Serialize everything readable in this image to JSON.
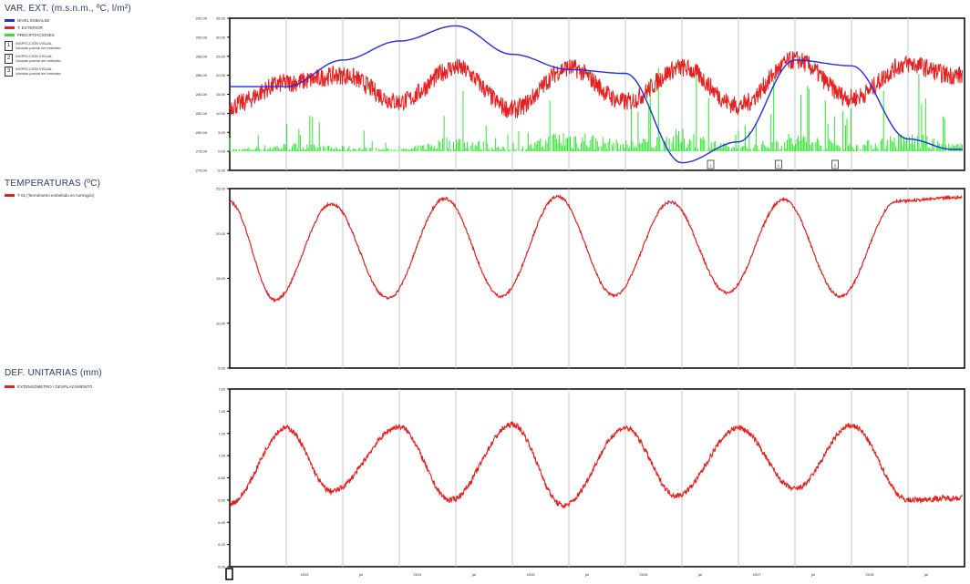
{
  "panels": {
    "external": {
      "title": "VAR. EXT. (m.s.n.m., ºC, l/m²)",
      "legend": [
        {
          "label": "NIVEL EMBALSE",
          "color": "#1f2ee6"
        },
        {
          "label": "T. EXTERIOR",
          "color": "#e61f1f"
        },
        {
          "label": "PRECIPITACIONES",
          "color": "#2ee62e"
        }
      ],
      "markers": [
        {
          "num": "1",
          "text": [
            "INSPECCIÓN VISUAL",
            "Vaciado parcial del embalse"
          ]
        },
        {
          "num": "2",
          "text": [
            "INSPECCIÓN VISUAL",
            "Vaciado parcial del embalse"
          ]
        },
        {
          "num": "3",
          "text": [
            "INSPECCIÓN VISUAL",
            "Vaciado parcial del embalse"
          ]
        }
      ],
      "left_ticks": [
        "35.00",
        "30.00",
        "25.00",
        "20.00",
        "15.00",
        "10.00",
        "5.00",
        "0.00",
        "-5.00"
      ],
      "right_ticks": [
        "292.00",
        "290.00",
        "288.00",
        "286.00",
        "284.00",
        "282.00",
        "280.00",
        "278.00",
        "276.00"
      ],
      "event_markers": [
        "1",
        "2",
        "3"
      ]
    },
    "temperature": {
      "title": "TEMPERATURAS (ºC)",
      "legend": [
        {
          "label": "T-01 (Termómetro embebido en hormigón)",
          "color": "#e61f1f"
        }
      ],
      "ticks": [
        "25.00",
        "20.00",
        "15.00",
        "10.00",
        "5.00"
      ]
    },
    "deformation": {
      "title": "DEF. UNITARIAS (mm)",
      "legend": [
        {
          "label": "EXTENSÓMETRO / DESPLAZAMIENTO",
          "color": "#e61f1f"
        }
      ],
      "ticks": [
        "7.60",
        "7.40",
        "7.20",
        "7.00",
        "6.80",
        "6.60",
        "6.40",
        "6.20",
        "6.00"
      ]
    }
  },
  "x_ticks": [
    "2013",
    "jul",
    "2014",
    "jul",
    "2015",
    "jul",
    "2016",
    "jul",
    "2017",
    "jul",
    "2018",
    "jul"
  ],
  "colors": {
    "reservoir": "#1f2ee6",
    "temperature": "#e61f1f",
    "precipitation": "#2ee62e",
    "grid": "#c8c8c8"
  },
  "chart_data": [
    {
      "type": "line",
      "title": "VAR. EXT. (m.s.n.m., ºC, l/m²)",
      "x": [
        2012.5,
        2013.0,
        2013.5,
        2014.0,
        2014.5,
        2015.0,
        2015.5,
        2016.0,
        2016.5,
        2017.0,
        2017.5,
        2018.0,
        2018.5,
        2018.9
      ],
      "series": [
        {
          "name": "NIVEL EMBALSE",
          "axis": "right",
          "values": [
            284.8,
            284.8,
            287.6,
            289.6,
            291.2,
            288.2,
            286.6,
            286.2,
            276.8,
            279.0,
            287.6,
            287.0,
            279.3,
            278.2
          ]
        },
        {
          "name": "T. EXTERIOR",
          "axis": "left",
          "values": [
            12,
            18,
            20,
            13,
            22,
            11,
            22,
            13,
            22,
            12,
            24,
            14,
            23,
            20
          ]
        },
        {
          "name": "PRECIPITACIONES",
          "axis": "left",
          "type": "bar",
          "values": [
            3,
            9,
            6,
            3,
            17,
            4,
            25,
            12,
            24,
            6,
            20,
            10,
            21,
            9
          ]
        }
      ],
      "ylim_left": [
        -5,
        35
      ],
      "ylim_right": [
        276,
        292
      ]
    },
    {
      "type": "line",
      "title": "TEMPERATURAS (ºC)",
      "series": [
        {
          "name": "T-01 (Termómetro embebido en hormigón)",
          "period_years": 1,
          "x": [
            2012.5,
            2012.9,
            2013.4,
            2013.9,
            2014.4,
            2014.9,
            2015.4,
            2015.9,
            2016.4,
            2016.9,
            2017.4,
            2017.9,
            2018.4,
            2018.95
          ],
          "values": [
            23.5,
            12.6,
            23.3,
            12.8,
            23.9,
            13.0,
            24.1,
            13.1,
            23.5,
            13.4,
            23.8,
            13.0,
            23.6,
            24.0
          ]
        }
      ],
      "ylim": [
        5,
        25
      ]
    },
    {
      "type": "line",
      "title": "DEF. UNITARIAS (mm)",
      "series": [
        {
          "name": "EXTENSÓMETRO / DESPLAZAMIENTO",
          "period_years": 1,
          "x": [
            2012.5,
            2013.0,
            2013.4,
            2014.0,
            2014.45,
            2015.0,
            2015.45,
            2016.0,
            2016.45,
            2017.0,
            2017.5,
            2018.0,
            2018.5,
            2018.95
          ],
          "values": [
            6.57,
            7.25,
            6.68,
            7.26,
            6.6,
            7.28,
            6.55,
            7.25,
            6.64,
            7.25,
            6.7,
            7.27,
            6.6,
            6.62
          ]
        }
      ],
      "ylim": [
        6.0,
        7.6
      ]
    }
  ]
}
